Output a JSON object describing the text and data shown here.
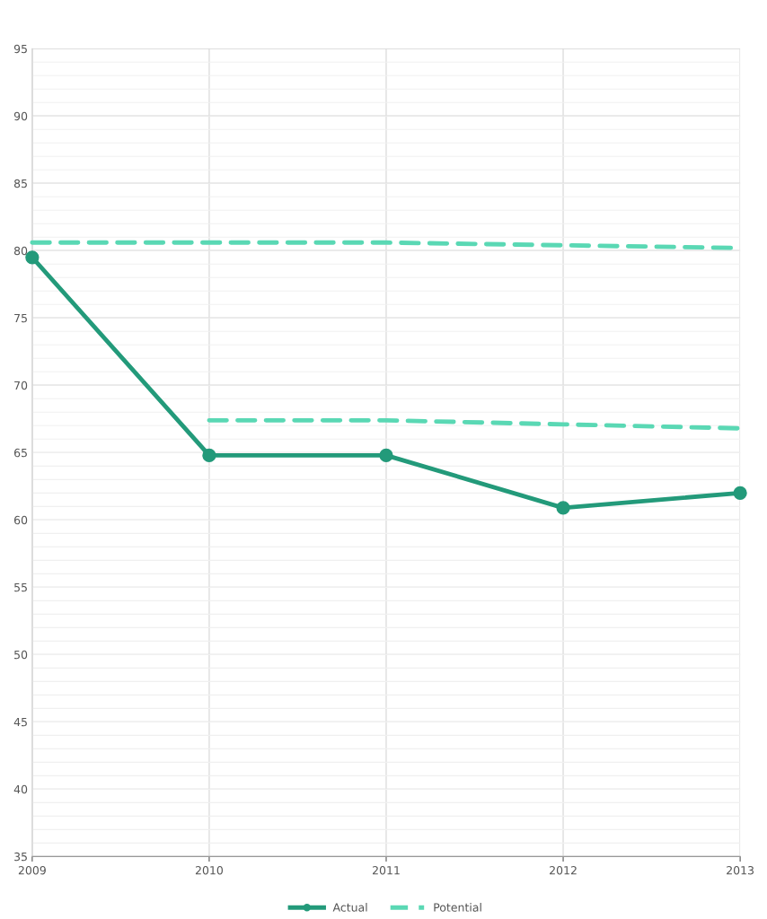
{
  "chart_data": {
    "type": "line",
    "x": [
      2009,
      2010,
      2011,
      2012,
      2013
    ],
    "series": [
      {
        "name": "Actual",
        "color": "#239a7a",
        "values": [
          79.5,
          64.8,
          64.8,
          60.9,
          62.0
        ],
        "marker": "circle",
        "line_style": "solid"
      },
      {
        "name": "Potential",
        "color": "#5ad8b4",
        "values": [
          80.6,
          80.6,
          80.6,
          80.4,
          80.2
        ],
        "marker": "none",
        "line_style": "dashed"
      },
      {
        "color": "#5ad8b4",
        "values": [
          null,
          67.4,
          67.4,
          67.1,
          66.8
        ],
        "marker": "none",
        "line_style": "dashed"
      }
    ],
    "xlim": [
      2009,
      2013
    ],
    "xticks": [
      2009,
      2010,
      2011,
      2012,
      2013
    ],
    "ylim": [
      35,
      95
    ],
    "yticks": [
      35,
      40,
      45,
      50,
      55,
      60,
      65,
      70,
      75,
      80,
      85,
      90,
      95
    ],
    "grid": true,
    "legend": "bottom"
  }
}
